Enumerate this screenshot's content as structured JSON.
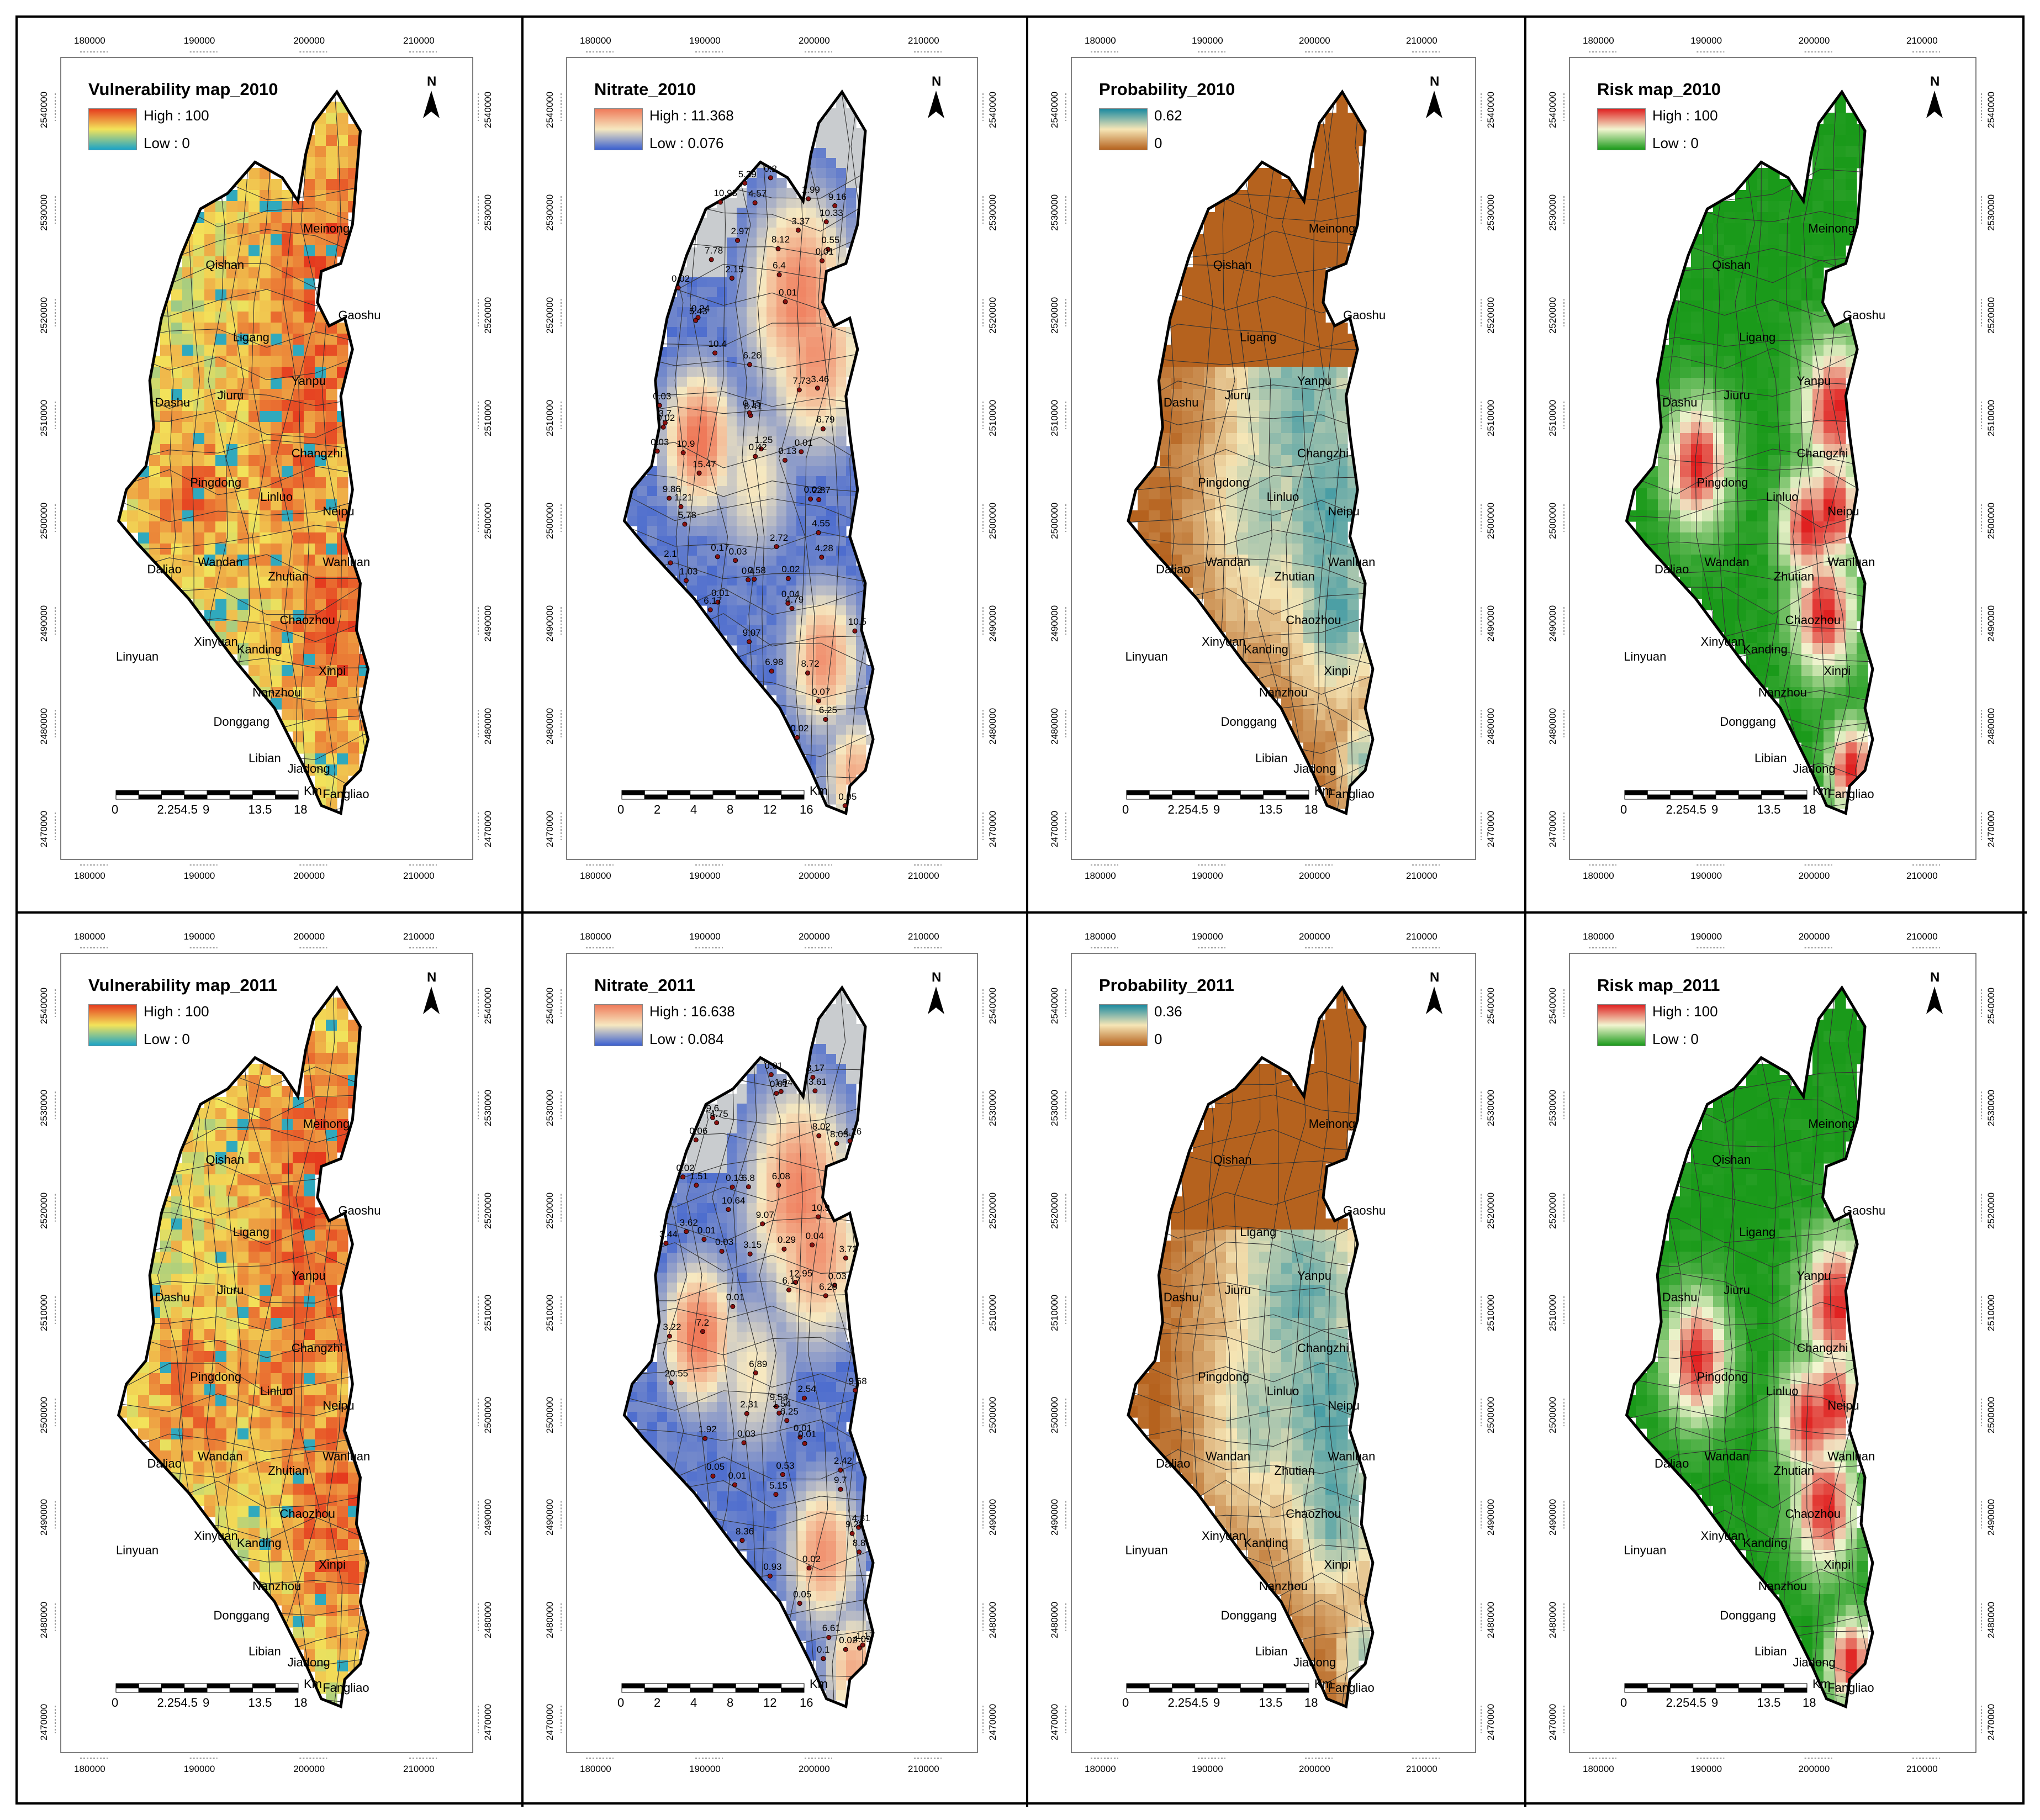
{
  "figure": {
    "panels": [
      {
        "id": "vuln-2010",
        "kind": "vulnerability",
        "title": "Vulnerability map_2010",
        "legend": {
          "high": "High : 100",
          "low": "Low : 0",
          "colors": [
            "#e53a1e",
            "#f3e35a",
            "#1aa3c8"
          ]
        }
      },
      {
        "id": "nitrate-2010",
        "kind": "nitrate",
        "title": "Nitrate_2010",
        "legend": {
          "high": "High : 11.368",
          "low": "Low : 0.076",
          "colors": [
            "#ef7a5a",
            "#f6e8c0",
            "#3a5fd0"
          ]
        },
        "samples": [
          "0.03",
          "4.57",
          "3.46",
          "0.05",
          "1.21",
          "0.01",
          "6.26",
          "9.16",
          "1.25",
          "4.28",
          "5.39",
          "0.24",
          "9.86",
          "2.72",
          "9.07",
          "8.72",
          "6.25",
          "8.41",
          "0.42",
          "0.02",
          "2.1",
          "0.13",
          "6.79",
          "10.4",
          "6.98",
          "0.01",
          "0.58",
          "6.17",
          "0.01",
          "15.47",
          "7.73",
          "0.07",
          "4.79",
          "2.87",
          "0.02",
          "2.97",
          "0.04",
          "0.15",
          "10.33",
          "6.4",
          "0.4",
          "10.9",
          "0.17",
          "0.03",
          "3.37",
          "8.12",
          "7.78",
          "1.99",
          "5.78",
          "0.2",
          "1.03",
          "0.02",
          "10.5",
          "3.7",
          "0.02",
          "0.55",
          "2.15",
          "0.02",
          "5.43",
          "4.55",
          "0.01",
          "0.03",
          "10.93"
        ]
      },
      {
        "id": "prob-2010",
        "kind": "probability",
        "title": "Probability_2010",
        "legend": {
          "high": "0.62",
          "low": "0",
          "colors": [
            "#1a8aa0",
            "#f6e6b6",
            "#b5621e"
          ]
        }
      },
      {
        "id": "risk-2010",
        "kind": "risk",
        "title": "Risk map_2010",
        "legend": {
          "high": "High : 100",
          "low": "Low : 0",
          "colors": [
            "#e02020",
            "#f2f5d0",
            "#1a9a1a"
          ]
        }
      },
      {
        "id": "vuln-2011",
        "kind": "vulnerability",
        "title": "Vulnerability map_2011",
        "legend": {
          "high": "High : 100",
          "low": "Low : 0",
          "colors": [
            "#e53a1e",
            "#f3e35a",
            "#1aa3c8"
          ]
        }
      },
      {
        "id": "nitrate-2011",
        "kind": "nitrate",
        "title": "Nitrate_2011",
        "legend": {
          "high": "High : 16.638",
          "low": "Low : 0.084",
          "colors": [
            "#ef7a5a",
            "#f6e8c0",
            "#3a5fd0"
          ]
        },
        "samples": [
          "0.04",
          "5.15",
          "4.31",
          "0.01",
          "1.54",
          "0.01",
          "6.89",
          "9.7",
          "4.26",
          "6.08",
          "3.61",
          "0.93",
          "10.9",
          "2.54",
          "9.07",
          "8.05",
          "6.28",
          "1.17",
          "3.15",
          "0.02",
          "10.64",
          "9.53",
          "1.94",
          "0.05",
          "6.61",
          "20.55",
          "0.02",
          "0.05",
          "8.36",
          "0.01",
          "0.1",
          "8.02",
          "9.68",
          "3.22",
          "0.06",
          "2.42",
          "0.01",
          "0.01",
          "7.2",
          "0.53",
          "0.13",
          "8.8",
          "6.25",
          "0.29",
          "3.72",
          "6.17",
          "0.02",
          "8.17",
          "4.09",
          "1.92",
          "6.8",
          "1.51",
          "0.03",
          "12.95",
          "3.62",
          "0.03",
          "2.31",
          "3.44",
          "0.01",
          "9.28",
          "4.75",
          "0.03",
          "0.01",
          "9.6"
        ]
      },
      {
        "id": "prob-2011",
        "kind": "probability",
        "title": "Probability_2011",
        "legend": {
          "high": "0.36",
          "low": "0",
          "colors": [
            "#1a8aa0",
            "#f6e6b6",
            "#b5621e"
          ]
        }
      },
      {
        "id": "risk-2011",
        "kind": "risk",
        "title": "Risk map_2011",
        "legend": {
          "high": "High : 100",
          "low": "Low : 0",
          "colors": [
            "#e02020",
            "#f2f5d0",
            "#1a9a1a"
          ]
        }
      }
    ],
    "x_ticks": [
      "180000",
      "190000",
      "200000",
      "210000"
    ],
    "y_ticks": [
      "2470000",
      "2480000",
      "2490000",
      "2500000",
      "2510000",
      "2520000",
      "2530000",
      "2540000"
    ],
    "north_label": "N",
    "towns": [
      "Meinong",
      "Qishan",
      "Gaoshu",
      "Ligang",
      "Yanpu",
      "Dashu",
      "Jiuru",
      "Changzhi",
      "Pingdong",
      "Linluo",
      "Neipu",
      "Daliao",
      "Wandan",
      "Zhutian",
      "Wanluan",
      "Chaozhou",
      "Xinyuan",
      "Linyuan",
      "Kanding",
      "Xinpi",
      "Nanzhou",
      "Donggang",
      "Libian",
      "Jiadong",
      "Fangliao"
    ],
    "scale_standard": {
      "labels": [
        "0",
        "2.254.5",
        "9",
        "13.5",
        "18"
      ],
      "unit": "Km"
    },
    "scale_nitrate": {
      "labels": [
        "0",
        "2",
        "4",
        "8",
        "12",
        "16"
      ],
      "unit": "Km"
    }
  }
}
